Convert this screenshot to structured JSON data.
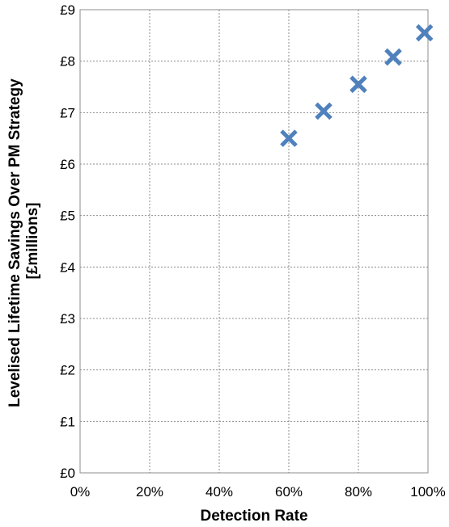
{
  "chart_data": {
    "type": "scatter",
    "xlabel": "Detection Rate",
    "ylabel": [
      "Levelised Lifetime Savings Over PM Strategy",
      "[£millions]"
    ],
    "x_ticks": [
      "0%",
      "20%",
      "40%",
      "60%",
      "80%",
      "100%"
    ],
    "y_ticks": [
      "£0",
      "£1",
      "£2",
      "£3",
      "£4",
      "£5",
      "£6",
      "£7",
      "£8",
      "£9"
    ],
    "xlim": [
      0,
      100
    ],
    "ylim": [
      0,
      9
    ],
    "grid": true,
    "marker": "x",
    "color": "#4f81bd",
    "series": [
      {
        "x": [
          60,
          70,
          80,
          90,
          99
        ],
        "y": [
          6.5,
          7.03,
          7.55,
          8.08,
          8.55
        ]
      }
    ]
  }
}
